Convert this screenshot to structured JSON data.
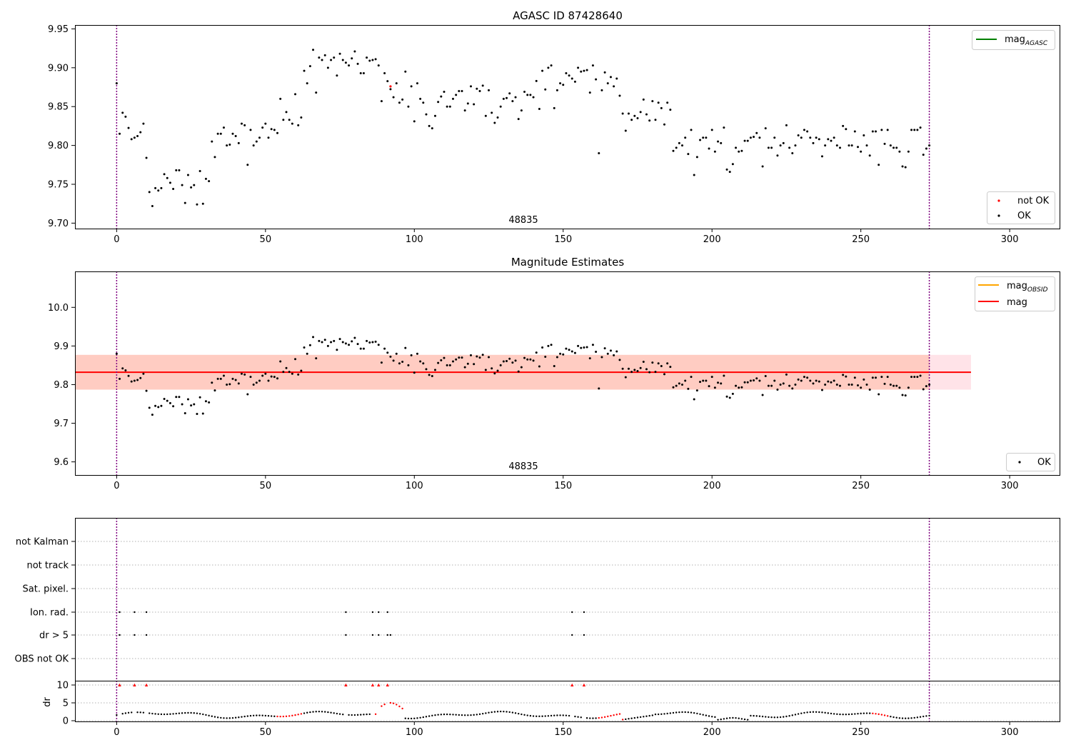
{
  "figure": {
    "panel1_title": "AGASC ID 87428640",
    "panel2_title": "Magnitude Estimates",
    "obsid_label": "48835",
    "dr_axis_label": "dr",
    "legend_mag_agasc_main": "mag",
    "legend_mag_agasc_sub": "AGASC",
    "legend_mag_obsid_main": "mag",
    "legend_mag_obsid_sub": "OBSID",
    "legend_mag": "mag",
    "legend_not_ok": "not OK",
    "legend_ok": "OK",
    "flag_labels": [
      "not Kalman",
      "not track",
      "Sat. pixel.",
      "Ion. rad.",
      "dr > 5",
      "OBS not OK"
    ],
    "colors": {
      "ok": "#000000",
      "not_ok": "#ff0000",
      "mag_agasc": "#008000",
      "mag_obsid": "#ffa500",
      "mag": "#ff0000",
      "obs_boundary": "#800080",
      "band_outer": "#ffc0cb",
      "band_inner": "#ffa07a"
    }
  },
  "chart_data": [
    {
      "type": "scatter",
      "title": "AGASC ID 87428640",
      "xlim": [
        -14,
        317
      ],
      "ylim": [
        9.693,
        9.955
      ],
      "x_ticks": [
        0,
        50,
        100,
        150,
        200,
        250,
        300
      ],
      "y_ticks": [
        9.7,
        9.75,
        9.8,
        9.85,
        9.9,
        9.95
      ],
      "y_tick_labels": [
        "9.70",
        "9.75",
        "9.80",
        "9.85",
        "9.90",
        "9.95"
      ],
      "obs_boundaries": [
        0,
        273
      ],
      "obsid_label": "48835",
      "series": [
        {
          "name": "OK",
          "color": "#000000",
          "generator": "mag_curve"
        },
        {
          "name": "not OK",
          "color": "#ff0000",
          "points": [
            [
              92,
              9.876
            ]
          ]
        },
        {
          "name": "mag_AGASC",
          "color": "#008000",
          "style": "line"
        }
      ],
      "legend": [
        "top-right: mag_AGASC",
        "bottom-right: not OK, OK"
      ]
    },
    {
      "type": "scatter",
      "title": "Magnitude Estimates",
      "xlim": [
        -14,
        317
      ],
      "ylim": [
        9.566,
        10.093
      ],
      "x_ticks": [
        0,
        50,
        100,
        150,
        200,
        250,
        300
      ],
      "y_ticks": [
        9.6,
        9.7,
        9.8,
        9.9,
        10.0
      ],
      "y_tick_labels": [
        "9.6",
        "9.7",
        "9.8",
        "9.9",
        "10.0"
      ],
      "obs_boundaries": [
        0,
        273
      ],
      "mag_line": 9.832,
      "mag_band": {
        "x": [
          -14,
          287
        ],
        "y": [
          9.787,
          9.877
        ]
      },
      "obsid_label": "48835",
      "series": [
        {
          "name": "OK",
          "color": "#000000",
          "generator": "mag_curve"
        },
        {
          "name": "mag_OBSID",
          "color": "#ffa500",
          "style": "line"
        },
        {
          "name": "mag",
          "color": "#ff0000",
          "value": 9.832,
          "style": "line"
        }
      ],
      "legend": [
        "top-right: mag_OBSID, mag",
        "bottom-right: OK"
      ]
    },
    {
      "type": "scatter",
      "title": "",
      "xlim": [
        -14,
        317
      ],
      "x_ticks": [
        0,
        50,
        100,
        150,
        200,
        250,
        300
      ],
      "flags": {
        "categories": [
          "not Kalman",
          "not track",
          "Sat. pixel.",
          "Ion. rad.",
          "dr > 5",
          "OBS not OK"
        ],
        "ion_rad_x": [
          1,
          6,
          10,
          77,
          86,
          88,
          91,
          153,
          157
        ],
        "dr_gt_5_x": [
          1,
          6,
          10,
          77,
          86,
          88,
          91,
          92,
          153,
          157
        ]
      },
      "dr": {
        "ylabel": "dr",
        "y_ticks": [
          0,
          5,
          10
        ],
        "clipped_at": 10,
        "clipped_x": [
          1,
          6,
          10,
          77,
          86,
          88,
          91,
          153,
          157
        ],
        "red_ranges": [
          [
            54,
            62
          ],
          [
            86,
            96
          ],
          [
            162,
            170
          ],
          [
            254,
            259
          ]
        ]
      }
    }
  ]
}
